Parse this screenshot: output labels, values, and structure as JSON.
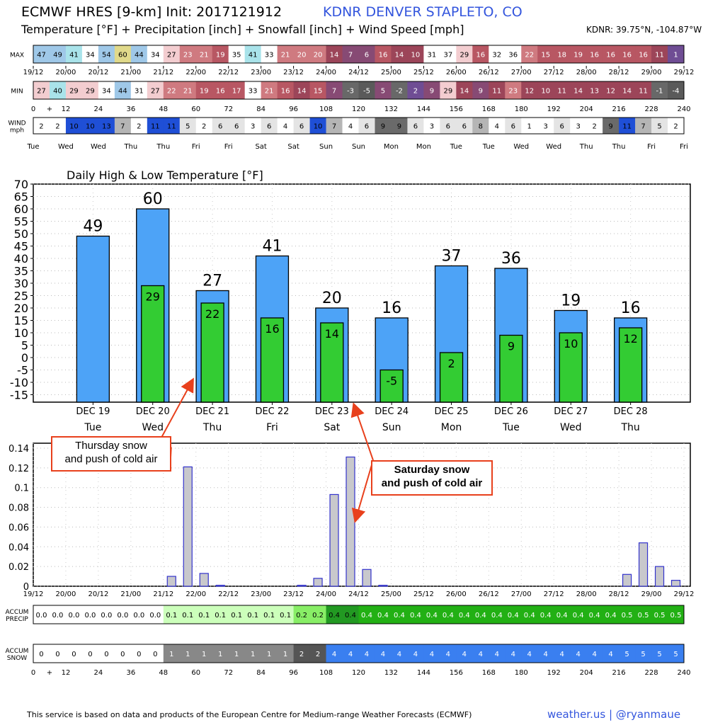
{
  "header": {
    "title_main": "ECMWF HRES [9-km] Init: 2017121912",
    "station": "KDNR DENVER STAPLETO, CO",
    "subtitle": "Temperature [°F] + Precipitation [inch] + Snowfall [inch] + Wind Speed [mph]",
    "coords": "KDNR: 39.75°N, -104.87°W"
  },
  "footer": {
    "note": "This service is based on data and products of the European Centre for Medium-range Weather Forecasts (ECMWF)",
    "credit": "weather.us | @ryanmaue"
  },
  "strips": {
    "max_label": "MAX",
    "min_label": "MIN",
    "wind_label": [
      "WIND",
      "mph"
    ],
    "precip_label": [
      "ACCUM",
      "PRECIP"
    ],
    "snow_label": [
      "ACCUM",
      "SNOW"
    ],
    "max_values": [
      47,
      49,
      41,
      34,
      54,
      60,
      44,
      34,
      27,
      23,
      21,
      19,
      35,
      41,
      33,
      21,
      20,
      20,
      14,
      7,
      6,
      16,
      14,
      10,
      31,
      37,
      29,
      16,
      32,
      36,
      22,
      15,
      18,
      19,
      16,
      16,
      16,
      16,
      11,
      1
    ],
    "min_values": [
      27,
      40,
      29,
      29,
      34,
      44,
      31,
      27,
      22,
      21,
      19,
      16,
      17,
      33,
      21,
      16,
      14,
      15,
      7,
      -3,
      -5,
      5,
      -2,
      2,
      9,
      29,
      14,
      9,
      11,
      23,
      12,
      10,
      11,
      14,
      13,
      12,
      14,
      11,
      -1,
      -4
    ],
    "wind_values": [
      2,
      2,
      10,
      10,
      13,
      7,
      2,
      11,
      11,
      5,
      2,
      6,
      6,
      3,
      6,
      4,
      6,
      10,
      7,
      4,
      6,
      9,
      9,
      6,
      3,
      6,
      6,
      8,
      4,
      6,
      1,
      3,
      6,
      3,
      2,
      9,
      11,
      7,
      5,
      2
    ],
    "precip_accum": [
      "0.0",
      "0.0",
      "0.0",
      "0.0",
      "0.0",
      "0.0",
      "0.0",
      "0.0",
      "0.1",
      "0.1",
      "0.1",
      "0.1",
      "0.1",
      "0.1",
      "0.1",
      "0.1",
      "0.2",
      "0.2",
      "0.4",
      "0.4",
      "0.4",
      "0.4",
      "0.4",
      "0.4",
      "0.4",
      "0.4",
      "0.4",
      "0.4",
      "0.4",
      "0.4",
      "0.4",
      "0.4",
      "0.4",
      "0.4",
      "0.4",
      "0.4",
      "0.5",
      "0.5",
      "0.5",
      "0.5"
    ],
    "snow_accum": [
      0,
      0,
      0,
      0,
      0,
      0,
      0,
      0,
      1,
      1,
      1,
      1,
      1,
      1,
      1,
      1,
      2,
      2,
      4,
      4,
      4,
      4,
      4,
      4,
      4,
      4,
      4,
      4,
      4,
      4,
      4,
      4,
      4,
      4,
      4,
      4,
      5,
      5,
      5,
      5
    ],
    "date_ticks": [
      "19/12",
      "20/00",
      "20/12",
      "21/00",
      "21/12",
      "22/00",
      "22/12",
      "23/00",
      "23/12",
      "24/00",
      "24/12",
      "25/00",
      "25/12",
      "26/00",
      "26/12",
      "27/00",
      "27/12",
      "28/00",
      "28/12",
      "29/00",
      "29/12"
    ],
    "hour_ticks": [
      "0",
      "+",
      "12",
      "24",
      "36",
      "48",
      "60",
      "72",
      "84",
      "96",
      "108",
      "120",
      "132",
      "144",
      "156",
      "168",
      "180",
      "192",
      "204",
      "216",
      "228",
      "240"
    ],
    "weekday_ticks": [
      "Tue",
      "Wed",
      "Wed",
      "Thu",
      "Thu",
      "Fri",
      "Fri",
      "Sat",
      "Sat",
      "Sun",
      "Sun",
      "Mon",
      "Mon",
      "Tue",
      "Tue",
      "Wed",
      "Wed",
      "Thu",
      "Thu",
      "Fri",
      "Fri"
    ]
  },
  "colors": {
    "bar_high": "#4da3f7",
    "bar_low": "#33cc33",
    "precip_bar": "#c8c8cc",
    "precip_bar_edge": "#3333cc",
    "callout": "#e8401c",
    "accent_blue": "#3355dd"
  },
  "annotations": {
    "thursday": [
      "Thursday snow",
      "and push of cold air"
    ],
    "saturday": [
      "Saturday snow",
      "and push of cold air"
    ]
  },
  "chart_data": [
    {
      "type": "bar",
      "title": "Daily High & Low Temperature [°F]",
      "categories": [
        "DEC 19",
        "DEC 20",
        "DEC 21",
        "DEC 22",
        "DEC 23",
        "DEC 24",
        "DEC 25",
        "DEC 26",
        "DEC 27",
        "DEC 28"
      ],
      "weekdays": [
        "Tue",
        "Wed",
        "Thu",
        "Fri",
        "Sat",
        "Sun",
        "Mon",
        "Tue",
        "Wed",
        "Thu"
      ],
      "series": [
        {
          "values": [
            49,
            60,
            27,
            41,
            20,
            16,
            37,
            36,
            19,
            16
          ]
        },
        {
          "values": [
            null,
            29,
            22,
            16,
            14,
            -5,
            2,
            9,
            10,
            12
          ]
        }
      ],
      "ylim": [
        -18,
        70
      ],
      "yticks": [
        -15,
        -10,
        -5,
        0,
        5,
        10,
        15,
        20,
        25,
        30,
        35,
        40,
        45,
        50,
        55,
        60,
        65,
        70
      ],
      "grid": true
    },
    {
      "type": "bar",
      "title": "",
      "x": [
        "21/12",
        "22/00",
        "22/12",
        "23/00",
        "23/12",
        "24/00",
        "24/12",
        "25/00",
        "28/12",
        "29/00",
        "29/12"
      ],
      "bars": [
        {
          "hour": 48,
          "value": 0.01
        },
        {
          "hour": 54,
          "value": 0.121
        },
        {
          "hour": 60,
          "value": 0.013
        },
        {
          "hour": 66,
          "value": 0.001
        },
        {
          "hour": 96,
          "value": 0.001
        },
        {
          "hour": 102,
          "value": 0.008
        },
        {
          "hour": 108,
          "value": 0.093
        },
        {
          "hour": 114,
          "value": 0.131
        },
        {
          "hour": 120,
          "value": 0.017
        },
        {
          "hour": 126,
          "value": 0.001
        },
        {
          "hour": 216,
          "value": 0.012
        },
        {
          "hour": 222,
          "value": 0.044
        },
        {
          "hour": 228,
          "value": 0.02
        },
        {
          "hour": 234,
          "value": 0.006
        }
      ],
      "ylim": [
        0,
        0.145
      ],
      "yticks": [
        "0",
        "0.02",
        "0.04",
        "0.06",
        "0.08",
        "0.1",
        "0.12",
        "0.14"
      ],
      "grid": true
    }
  ]
}
